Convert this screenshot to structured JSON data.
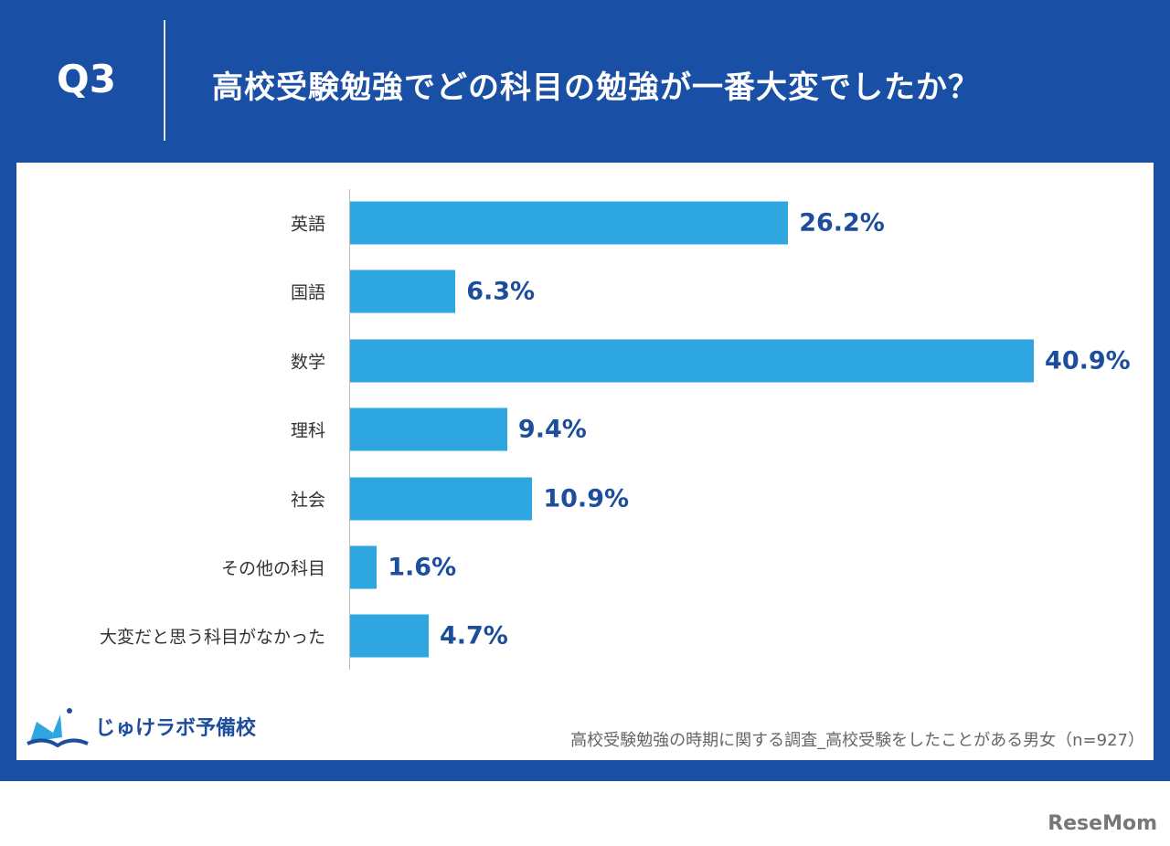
{
  "header": {
    "question": "Q3",
    "title": "高校受験勉強でどの科目の勉強が一番大変でしたか？"
  },
  "chart_data": {
    "type": "bar",
    "orientation": "horizontal",
    "categories": [
      "英語",
      "国語",
      "数学",
      "理科",
      "社会",
      "その他の科目",
      "大変だと思う科目がなかった"
    ],
    "values": [
      26.2,
      6.3,
      40.9,
      9.4,
      10.9,
      1.6,
      4.7
    ],
    "labels": [
      "26.2%",
      "6.3%",
      "40.9%",
      "9.4%",
      "10.9%",
      "1.6%",
      "4.7%"
    ],
    "unit": "%",
    "grid": false,
    "bar_color": "#2ea6e0",
    "label_color": "#1d4e9e"
  },
  "footer": {
    "logo": "じゅけラボ予備校",
    "source": "高校受験勉強の時期に関する調査_高校受験をしたことがある男女（n=927）",
    "watermark": "ReseMom"
  },
  "colors": {
    "frame": "#1a4fa6"
  }
}
